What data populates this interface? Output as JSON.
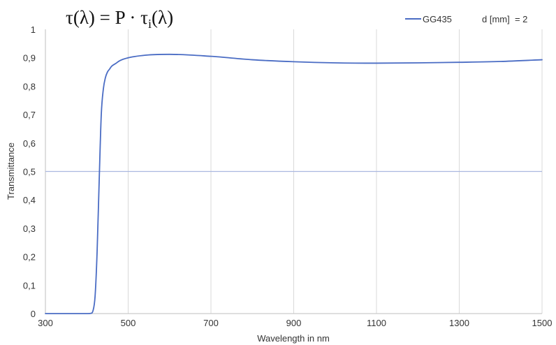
{
  "chart_data": {
    "type": "line",
    "title": "τ(λ) = P · τ_i(λ)",
    "title_parts": {
      "lhs": "τ(λ) = P · τ",
      "sub": "i",
      "rhs": "(λ)"
    },
    "xlabel": "Wavelength in nm",
    "ylabel": "Transmittance",
    "xlim": [
      300,
      1500
    ],
    "ylim": [
      0,
      1
    ],
    "x_ticks": [
      300,
      500,
      700,
      900,
      1100,
      1300,
      1500
    ],
    "y_ticks": [
      {
        "value": 0,
        "label": "0"
      },
      {
        "value": 0.1,
        "label": "0,1"
      },
      {
        "value": 0.2,
        "label": "0,2"
      },
      {
        "value": 0.3,
        "label": "0,3"
      },
      {
        "value": 0.4,
        "label": "0,4"
      },
      {
        "value": 0.5,
        "label": "0,5"
      },
      {
        "value": 0.6,
        "label": "0,6"
      },
      {
        "value": 0.7,
        "label": "0,7"
      },
      {
        "value": 0.8,
        "label": "0,8"
      },
      {
        "value": 0.9,
        "label": "0,9"
      },
      {
        "value": 1,
        "label": "1"
      }
    ],
    "grid": "vertical",
    "legend_position": "top-right",
    "legend_note": "d [mm]  = 2",
    "reference_line": {
      "y": 0.5,
      "color": "#aab8e0"
    },
    "series": [
      {
        "name": "GG435",
        "color": "#4a6cc4",
        "x": [
          300,
          400,
          410,
          415,
          420,
          425,
          430,
          435,
          440,
          445,
          450,
          455,
          460,
          470,
          480,
          500,
          550,
          600,
          700,
          800,
          900,
          1000,
          1100,
          1200,
          1300,
          1400,
          1500
        ],
        "y": [
          0,
          0,
          0.001,
          0.01,
          0.06,
          0.22,
          0.47,
          0.7,
          0.79,
          0.83,
          0.85,
          0.86,
          0.87,
          0.88,
          0.89,
          0.9,
          0.91,
          0.912,
          0.905,
          0.893,
          0.886,
          0.882,
          0.881,
          0.882,
          0.884,
          0.887,
          0.893
        ]
      }
    ]
  }
}
